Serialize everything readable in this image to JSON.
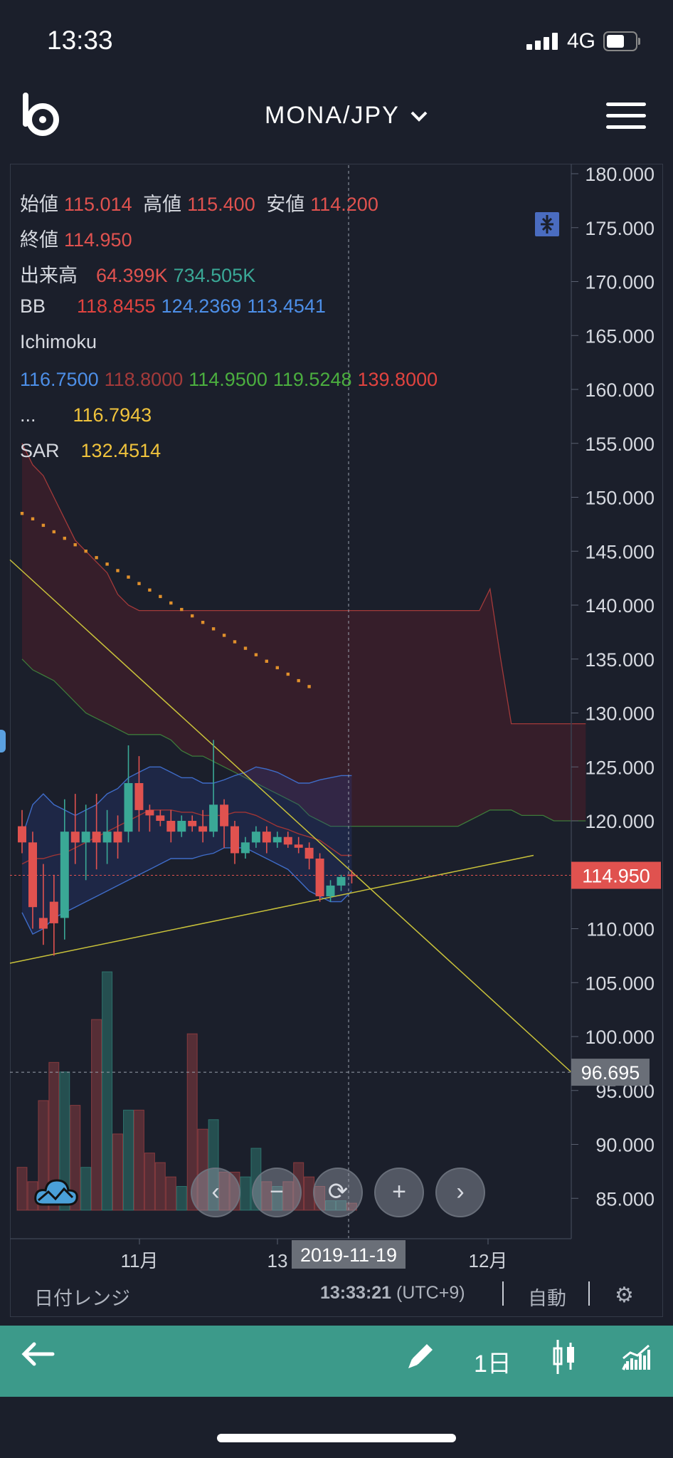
{
  "status_bar": {
    "time": "13:33",
    "network": "4G"
  },
  "header": {
    "pair": "MONA/JPY"
  },
  "legend": {
    "ohlc": {
      "open_label": "始値",
      "open": "115.014",
      "high_label": "高値",
      "high": "115.400",
      "low_label": "安値",
      "low": "114.200",
      "close_label": "終値",
      "close": "114.950"
    },
    "volume": {
      "label": "出来高",
      "v1": "64.399K",
      "v2": "734.505K"
    },
    "bb": {
      "label": "BB",
      "v1": "118.8455",
      "v2": "124.2369",
      "v3": "113.4541"
    },
    "ichimoku": {
      "label": "Ichimoku",
      "v1": "116.7500",
      "v2": "118.8000",
      "v3": "114.9500",
      "v4": "119.5248",
      "v5": "139.8000"
    },
    "extra": {
      "label": "...",
      "v1": "116.7943"
    },
    "sar": {
      "label": "SAR",
      "v1": "132.4514"
    }
  },
  "chart_data": {
    "type": "candlestick",
    "ylim": [
      80,
      181
    ],
    "y_ticks": [
      "180.000",
      "175.000",
      "170.000",
      "165.000",
      "160.000",
      "155.000",
      "150.000",
      "145.000",
      "140.000",
      "135.000",
      "130.000",
      "125.000",
      "120.000",
      "115.000",
      "110.000",
      "105.000",
      "100.000",
      "95.000",
      "90.000",
      "85.000"
    ],
    "last_price_label": "114.950",
    "crosshair_price_label": "96.695",
    "crosshair_date_label": "2019-11-19",
    "x_ticks": [
      "11月",
      "13",
      "12月"
    ],
    "candles": [
      {
        "o": 119.5,
        "h": 121.0,
        "l": 117.0,
        "c": 118.0
      },
      {
        "o": 118.0,
        "h": 119.0,
        "l": 110.0,
        "c": 112.0
      },
      {
        "o": 111.0,
        "h": 116.0,
        "l": 108.5,
        "c": 110.0
      },
      {
        "o": 112.5,
        "h": 115.0,
        "l": 107.5,
        "c": 110.5
      },
      {
        "o": 111.0,
        "h": 122.0,
        "l": 109.0,
        "c": 119.0
      },
      {
        "o": 119.0,
        "h": 122.5,
        "l": 116.0,
        "c": 118.0
      },
      {
        "o": 118.0,
        "h": 121.5,
        "l": 114.5,
        "c": 119.0
      },
      {
        "o": 119.0,
        "h": 122.5,
        "l": 115.5,
        "c": 118.0
      },
      {
        "o": 118.0,
        "h": 121.0,
        "l": 116.0,
        "c": 119.0
      },
      {
        "o": 119.0,
        "h": 120.5,
        "l": 116.5,
        "c": 118.0
      },
      {
        "o": 119.0,
        "h": 127.0,
        "l": 118.0,
        "c": 123.5
      },
      {
        "o": 123.5,
        "h": 126.0,
        "l": 119.0,
        "c": 121.0
      },
      {
        "o": 121.0,
        "h": 121.5,
        "l": 119.0,
        "c": 120.5
      },
      {
        "o": 120.5,
        "h": 121.0,
        "l": 119.5,
        "c": 120.0
      },
      {
        "o": 120.0,
        "h": 121.0,
        "l": 118.0,
        "c": 119.0
      },
      {
        "o": 119.0,
        "h": 120.5,
        "l": 118.5,
        "c": 120.0
      },
      {
        "o": 120.0,
        "h": 120.5,
        "l": 119.0,
        "c": 119.5
      },
      {
        "o": 119.5,
        "h": 121.0,
        "l": 118.0,
        "c": 119.0
      },
      {
        "o": 119.0,
        "h": 127.5,
        "l": 118.5,
        "c": 121.5
      },
      {
        "o": 121.5,
        "h": 122.0,
        "l": 117.5,
        "c": 119.5
      },
      {
        "o": 119.5,
        "h": 120.0,
        "l": 116.0,
        "c": 117.0
      },
      {
        "o": 117.0,
        "h": 118.5,
        "l": 116.5,
        "c": 118.0
      },
      {
        "o": 118.0,
        "h": 119.5,
        "l": 117.5,
        "c": 119.0
      },
      {
        "o": 119.0,
        "h": 119.5,
        "l": 117.0,
        "c": 118.0
      },
      {
        "o": 118.0,
        "h": 119.0,
        "l": 117.5,
        "c": 118.5
      },
      {
        "o": 118.5,
        "h": 119.0,
        "l": 117.5,
        "c": 117.8
      },
      {
        "o": 117.8,
        "h": 118.5,
        "l": 117.0,
        "c": 117.5
      },
      {
        "o": 117.5,
        "h": 118.0,
        "l": 115.5,
        "c": 116.5
      },
      {
        "o": 116.5,
        "h": 117.0,
        "l": 112.5,
        "c": 113.0
      },
      {
        "o": 113.0,
        "h": 114.5,
        "l": 112.5,
        "c": 114.0
      },
      {
        "o": 114.0,
        "h": 115.0,
        "l": 113.5,
        "c": 114.8
      },
      {
        "o": 115.014,
        "h": 115.4,
        "l": 114.2,
        "c": 114.95
      }
    ],
    "sar": [
      148.5,
      148.0,
      147.4,
      146.8,
      146.2,
      145.6,
      145.0,
      144.4,
      143.8,
      143.2,
      142.6,
      142.0,
      141.4,
      140.8,
      140.2,
      139.6,
      139.0,
      138.4,
      137.8,
      137.2,
      136.6,
      136.0,
      135.4,
      134.8,
      134.2,
      133.6,
      133.0,
      132.45
    ],
    "bb_upper": [
      118.5,
      121.5,
      122.5,
      121.5,
      121.0,
      120.5,
      121.0,
      121.5,
      122.5,
      123.0,
      124.0,
      124.5,
      125.0,
      125.0,
      124.5,
      124.0,
      124.0,
      123.5,
      123.5,
      123.8,
      124.2,
      124.5,
      125.0,
      124.8,
      124.5,
      124.0,
      123.5,
      123.5,
      123.8,
      124.0,
      124.2,
      124.2
    ],
    "bb_middle": [
      116.0,
      116.5,
      116.5,
      116.8,
      117.0,
      117.5,
      118.0,
      118.5,
      119.0,
      119.5,
      120.0,
      120.5,
      121.0,
      121.0,
      121.0,
      120.8,
      120.8,
      120.5,
      120.5,
      120.5,
      120.8,
      120.8,
      120.5,
      120.0,
      119.5,
      119.2,
      118.8,
      118.5,
      118.2,
      117.5,
      116.8,
      116.8
    ],
    "bb_lower": [
      111.5,
      109.5,
      110.0,
      111.0,
      111.5,
      112.0,
      112.5,
      113.0,
      113.5,
      114.0,
      114.5,
      115.0,
      115.5,
      116.0,
      116.5,
      116.5,
      116.5,
      116.8,
      117.0,
      117.5,
      117.5,
      117.5,
      117.0,
      116.5,
      116.0,
      115.5,
      114.5,
      113.5,
      113.0,
      112.5,
      112.5,
      113.5
    ],
    "cloud_span_a": [
      155,
      153,
      152,
      150,
      148,
      146,
      145,
      144,
      143,
      141,
      140,
      139.5,
      139.5,
      139.5,
      139.5,
      139.5,
      139.5,
      139.5,
      139.5,
      139.5,
      139.5,
      139.5,
      139.5,
      139.5,
      139.5,
      139.5,
      139.5,
      139.5,
      139.5,
      139.5,
      139.5,
      139.5,
      139.5,
      139.5,
      139.5,
      139.5,
      139.5,
      139.5,
      139.5,
      139.5,
      139.5,
      139.5,
      139.5,
      139.5,
      141.5,
      135,
      129,
      129,
      129,
      129,
      129,
      129,
      129,
      129
    ],
    "cloud_span_b": [
      135,
      134,
      133.5,
      133,
      132,
      131,
      130,
      129.5,
      129,
      128.5,
      128,
      128,
      128,
      128,
      127.5,
      126.5,
      126,
      126,
      125.5,
      125,
      124.5,
      124,
      123.5,
      123,
      122.5,
      122,
      121.5,
      120.5,
      120,
      119.5,
      119.5,
      119.5,
      119.5,
      119.5,
      119.5,
      119.5,
      119.5,
      119.5,
      119.5,
      119.5,
      119.5,
      119.5,
      120,
      120.5,
      121,
      121,
      121,
      120.5,
      120.5,
      120.5,
      120,
      120,
      120,
      120
    ],
    "volume": [
      0.18,
      0.12,
      0.46,
      0.62,
      0.58,
      0.44,
      0.18,
      0.8,
      1.0,
      0.32,
      0.42,
      0.42,
      0.24,
      0.2,
      0.14,
      0.1,
      0.74,
      0.34,
      0.38,
      0.16,
      0.16,
      0.14,
      0.26,
      0.12,
      0.1,
      0.12,
      0.2,
      0.14,
      0.1,
      0.04,
      0.04,
      0.03
    ]
  },
  "toolbar": {
    "interval": "1日"
  },
  "bottom": {
    "date_range": "日付レンジ",
    "clock": "13:33:21",
    "tz": "(UTC+9)",
    "auto": "自動"
  },
  "colors": {
    "up": "#3aa896",
    "down": "#e0524f",
    "bg": "#1b1f2b",
    "accent": "#3c9a8a"
  }
}
